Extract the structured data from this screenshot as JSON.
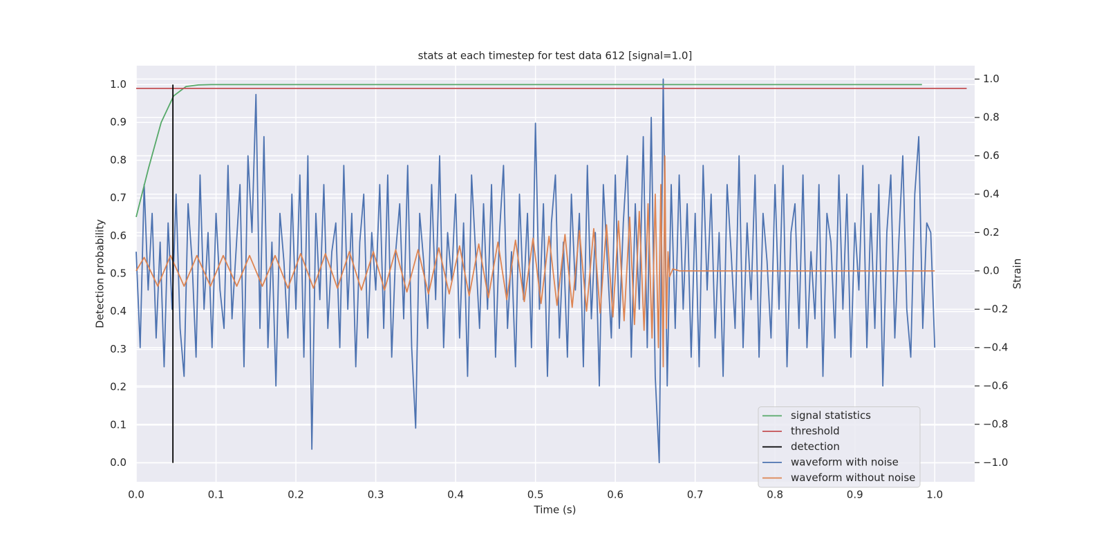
{
  "chart_data": {
    "type": "line",
    "title": "stats at each timestep for test data 612 [signal=1.0]",
    "xlabel": "Time (s)",
    "ylabel": "Detection probability",
    "y2label": "Strain",
    "xlim": [
      0,
      1.05
    ],
    "ylim": [
      -0.05,
      1.05
    ],
    "y2lim": [
      -1.1,
      1.07
    ],
    "xticks": [
      {
        "value": 0,
        "label": "0.0"
      },
      0.1,
      0.2,
      0.3,
      0.4,
      0.5,
      0.6,
      0.7,
      0.8,
      0.9,
      {
        "value": 1,
        "label": "1.0"
      }
    ],
    "yticks": [
      {
        "value": 0,
        "label": "0.0"
      },
      0.1,
      0.2,
      0.3,
      0.4,
      0.5,
      0.6,
      0.7,
      0.8,
      0.9,
      {
        "value": 1,
        "label": "1.0"
      }
    ],
    "y2ticks": [
      {
        "value": -1,
        "label": "−1.0"
      },
      {
        "value": -0.8,
        "label": "−0.8"
      },
      {
        "value": -0.6,
        "label": "−0.6"
      },
      {
        "value": -0.4,
        "label": "−0.4"
      },
      {
        "value": -0.2,
        "label": "−0.2"
      },
      {
        "value": 0,
        "label": "0.0"
      },
      0.2,
      0.4,
      0.6,
      0.8,
      {
        "value": 1,
        "label": "1.0"
      }
    ],
    "grid": true,
    "legend": "lower right",
    "series": [
      {
        "name": "signal statistics",
        "color": "#55a868",
        "x": [
          0,
          0.0156,
          0.0313,
          0.0469,
          0.0625,
          0.078,
          0.094,
          0.984
        ],
        "values": [
          0.65,
          0.78,
          0.9,
          0.97,
          0.995,
          0.999,
          1.0,
          1.0
        ]
      },
      {
        "name": "threshold",
        "color": "#c44e52",
        "x": [
          0,
          1.04
        ],
        "values": [
          0.99,
          0.99
        ]
      },
      {
        "name": "detection",
        "color": "#000000",
        "x": [
          0.046,
          0.046
        ],
        "values": [
          0,
          1
        ]
      },
      {
        "name": "waveform with noise",
        "color": "#4c72b0",
        "axis": "y2",
        "x": [
          0,
          0.005,
          0.01,
          0.015,
          0.02,
          0.025,
          0.03,
          0.035,
          0.04,
          0.045,
          0.05,
          0.055,
          0.06,
          0.065,
          0.07,
          0.075,
          0.08,
          0.085,
          0.09,
          0.095,
          0.1,
          0.105,
          0.11,
          0.115,
          0.12,
          0.125,
          0.13,
          0.135,
          0.14,
          0.145,
          0.15,
          0.155,
          0.16,
          0.165,
          0.17,
          0.175,
          0.18,
          0.185,
          0.19,
          0.195,
          0.2,
          0.205,
          0.21,
          0.215,
          0.22,
          0.225,
          0.23,
          0.235,
          0.24,
          0.245,
          0.25,
          0.255,
          0.26,
          0.265,
          0.27,
          0.275,
          0.28,
          0.285,
          0.29,
          0.295,
          0.3,
          0.305,
          0.31,
          0.315,
          0.32,
          0.325,
          0.33,
          0.335,
          0.34,
          0.345,
          0.35,
          0.355,
          0.36,
          0.365,
          0.37,
          0.375,
          0.38,
          0.385,
          0.39,
          0.395,
          0.4,
          0.405,
          0.41,
          0.415,
          0.42,
          0.425,
          0.43,
          0.435,
          0.44,
          0.445,
          0.45,
          0.455,
          0.46,
          0.465,
          0.47,
          0.475,
          0.48,
          0.485,
          0.49,
          0.495,
          0.5,
          0.505,
          0.51,
          0.515,
          0.52,
          0.525,
          0.53,
          0.535,
          0.54,
          0.545,
          0.55,
          0.555,
          0.56,
          0.565,
          0.57,
          0.575,
          0.58,
          0.585,
          0.59,
          0.595,
          0.6,
          0.605,
          0.61,
          0.615,
          0.62,
          0.625,
          0.63,
          0.635,
          0.64,
          0.645,
          0.65,
          0.655,
          0.66,
          0.665,
          0.67,
          0.675,
          0.68,
          0.685,
          0.69,
          0.695,
          0.7,
          0.705,
          0.71,
          0.715,
          0.72,
          0.725,
          0.73,
          0.735,
          0.74,
          0.745,
          0.75,
          0.755,
          0.76,
          0.765,
          0.77,
          0.775,
          0.78,
          0.785,
          0.79,
          0.795,
          0.8,
          0.805,
          0.81,
          0.815,
          0.82,
          0.825,
          0.83,
          0.835,
          0.84,
          0.845,
          0.85,
          0.855,
          0.86,
          0.865,
          0.87,
          0.875,
          0.88,
          0.885,
          0.89,
          0.895,
          0.9,
          0.905,
          0.91,
          0.915,
          0.92,
          0.925,
          0.93,
          0.935,
          0.94,
          0.945,
          0.95,
          0.955,
          0.96,
          0.965,
          0.97,
          0.975,
          0.98,
          0.985,
          0.99,
          0.995,
          1.0
        ],
        "values": [
          0.1,
          -0.4,
          0.45,
          -0.1,
          0.3,
          -0.35,
          0.15,
          -0.5,
          0.25,
          -0.2,
          0.4,
          -0.3,
          -0.55,
          0.35,
          0.05,
          -0.45,
          0.5,
          -0.2,
          0.2,
          -0.4,
          0.3,
          -0.1,
          -0.3,
          0.55,
          -0.25,
          0.1,
          0.45,
          -0.5,
          0.6,
          0.2,
          0.92,
          -0.3,
          0.7,
          -0.4,
          0.15,
          -0.6,
          0.3,
          0.05,
          -0.35,
          0.4,
          -0.2,
          0.5,
          -0.45,
          0.6,
          -0.93,
          0.3,
          -0.15,
          0.45,
          -0.3,
          0.1,
          0.25,
          -0.4,
          0.55,
          -0.2,
          0.3,
          -0.5,
          0.15,
          0.4,
          -0.35,
          0.2,
          -0.1,
          0.45,
          -0.3,
          0.5,
          -0.45,
          0.1,
          0.35,
          -0.25,
          0.55,
          -0.4,
          -0.82,
          0.3,
          0.05,
          -0.3,
          0.45,
          -0.15,
          0.6,
          -0.4,
          0.2,
          -0.05,
          0.4,
          -0.35,
          0.25,
          -0.55,
          0.5,
          0.1,
          -0.3,
          0.35,
          -0.2,
          0.45,
          -0.45,
          0.2,
          0.55,
          -0.3,
          0.1,
          -0.5,
          0.4,
          -0.15,
          0.3,
          -0.4,
          0.77,
          -0.2,
          0.35,
          -0.55,
          0.25,
          0.5,
          -0.35,
          0.15,
          -0.45,
          0.4,
          -0.1,
          0.3,
          -0.5,
          0.55,
          -0.25,
          0.2,
          -0.6,
          0.45,
          0.05,
          -0.35,
          0.5,
          -0.3,
          0.25,
          0.6,
          -0.45,
          0.35,
          -0.2,
          0.7,
          -0.4,
          0.8,
          -0.55,
          -1.0,
          1.0,
          -0.6,
          0.45,
          -0.3,
          0.5,
          -0.2,
          0.35,
          -0.45,
          0.3,
          -0.5,
          0.55,
          -0.1,
          0.4,
          -0.35,
          0.2,
          -0.55,
          0.45,
          0.1,
          -0.3,
          0.6,
          -0.4,
          0.25,
          -0.15,
          0.5,
          -0.45,
          0.3,
          0.05,
          -0.35,
          0.45,
          -0.2,
          0.55,
          -0.5,
          0.2,
          0.35,
          -0.3,
          0.5,
          -0.4,
          0.1,
          -0.25,
          0.45,
          -0.55,
          0.3,
          0.15,
          -0.35,
          0.5,
          -0.2,
          0.4,
          -0.45,
          0.25,
          -0.1,
          0.55,
          -0.4,
          0.3,
          -0.3,
          0.45,
          -0.6,
          0.2,
          0.5,
          -0.35,
          0.15,
          0.6,
          -0.2,
          -0.45,
          0.4,
          0.7,
          -0.3,
          0.25,
          0.2,
          -0.4
        ]
      },
      {
        "name": "waveform without noise",
        "color": "#dd8452",
        "axis": "y2",
        "x": [
          0,
          0.01,
          0.027,
          0.043,
          0.06,
          0.076,
          0.093,
          0.109,
          0.126,
          0.142,
          0.158,
          0.174,
          0.19,
          0.206,
          0.222,
          0.237,
          0.252,
          0.267,
          0.282,
          0.297,
          0.311,
          0.325,
          0.339,
          0.353,
          0.366,
          0.379,
          0.392,
          0.405,
          0.417,
          0.429,
          0.441,
          0.453,
          0.464,
          0.475,
          0.486,
          0.497,
          0.507,
          0.517,
          0.527,
          0.537,
          0.546,
          0.555,
          0.564,
          0.573,
          0.581,
          0.589,
          0.597,
          0.604,
          0.611,
          0.618,
          0.624,
          0.63,
          0.636,
          0.641,
          0.646,
          0.65,
          0.654,
          0.657,
          0.66,
          0.662,
          0.664,
          0.666,
          0.668,
          0.672,
          0.68,
          1.0
        ],
        "values": [
          0,
          0.07,
          -0.08,
          0.08,
          -0.08,
          0.08,
          -0.08,
          0.08,
          -0.08,
          0.08,
          -0.08,
          0.08,
          -0.09,
          0.09,
          -0.09,
          0.09,
          -0.09,
          0.1,
          -0.1,
          0.1,
          -0.1,
          0.11,
          -0.11,
          0.11,
          -0.12,
          0.12,
          -0.12,
          0.13,
          -0.13,
          0.14,
          -0.14,
          0.15,
          -0.15,
          0.16,
          -0.16,
          0.17,
          -0.17,
          0.18,
          -0.18,
          0.19,
          -0.19,
          0.21,
          -0.21,
          0.22,
          -0.22,
          0.24,
          -0.24,
          0.26,
          -0.26,
          0.28,
          -0.28,
          0.31,
          -0.31,
          0.35,
          -0.35,
          0.4,
          -0.4,
          0.45,
          -0.5,
          0.6,
          -0.3,
          0.1,
          -0.03,
          0.01,
          0,
          0
        ]
      }
    ]
  }
}
